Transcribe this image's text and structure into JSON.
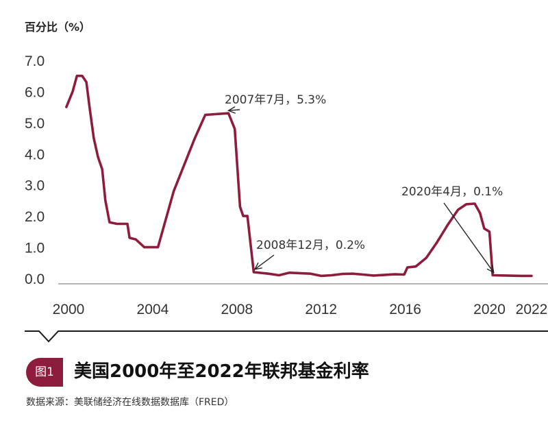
{
  "chart_data": {
    "type": "line",
    "ylabel": "百分比（%）",
    "y_ticks": [
      "7.0",
      "6.0",
      "5.0",
      "4.0",
      "3.0",
      "2.0",
      "1.0",
      "0.0"
    ],
    "x_ticks": [
      "2000",
      "2004",
      "2008",
      "2012",
      "2016",
      "2020",
      "2022"
    ],
    "ylim": [
      0,
      7
    ],
    "xlim": [
      2000,
      2022
    ],
    "series": [
      {
        "color": "#8e1c3c",
        "points": [
          [
            1999.9,
            5.5
          ],
          [
            2000.2,
            6.0
          ],
          [
            2000.4,
            6.5
          ],
          [
            2000.65,
            6.5
          ],
          [
            2000.85,
            6.3
          ],
          [
            2001.0,
            5.5
          ],
          [
            2001.2,
            4.5
          ],
          [
            2001.4,
            3.9
          ],
          [
            2001.6,
            3.5
          ],
          [
            2001.75,
            2.5
          ],
          [
            2001.95,
            1.8
          ],
          [
            2002.3,
            1.75
          ],
          [
            2002.8,
            1.75
          ],
          [
            2002.9,
            1.3
          ],
          [
            2003.2,
            1.25
          ],
          [
            2003.6,
            1.0
          ],
          [
            2004.0,
            1.0
          ],
          [
            2004.25,
            1.0
          ],
          [
            2005.0,
            2.8
          ],
          [
            2006.0,
            4.5
          ],
          [
            2006.5,
            5.25
          ],
          [
            2007.6,
            5.3
          ],
          [
            2007.9,
            4.8
          ],
          [
            2008.15,
            2.3
          ],
          [
            2008.3,
            2.0
          ],
          [
            2008.5,
            2.0
          ],
          [
            2008.8,
            0.2
          ],
          [
            2009.5,
            0.15
          ],
          [
            2010.0,
            0.1
          ],
          [
            2010.5,
            0.18
          ],
          [
            2011.5,
            0.15
          ],
          [
            2012.0,
            0.08
          ],
          [
            2012.5,
            0.1
          ],
          [
            2013.0,
            0.14
          ],
          [
            2013.5,
            0.15
          ],
          [
            2014.0,
            0.12
          ],
          [
            2014.5,
            0.09
          ],
          [
            2015.5,
            0.13
          ],
          [
            2015.95,
            0.12
          ],
          [
            2016.1,
            0.35
          ],
          [
            2016.5,
            0.38
          ],
          [
            2017.0,
            0.66
          ],
          [
            2017.5,
            1.15
          ],
          [
            2018.0,
            1.7
          ],
          [
            2018.5,
            2.2
          ],
          [
            2018.9,
            2.38
          ],
          [
            2019.3,
            2.4
          ],
          [
            2019.55,
            2.1
          ],
          [
            2019.75,
            1.6
          ],
          [
            2020.0,
            1.5
          ],
          [
            2020.15,
            0.1
          ],
          [
            2020.8,
            0.09
          ],
          [
            2021.5,
            0.08
          ],
          [
            2022.0,
            0.08
          ]
        ]
      }
    ],
    "annotations": [
      {
        "text": "2007年7月，5.3%",
        "x": 2007.6,
        "y": 5.3
      },
      {
        "text": "2008年12月，0.2%",
        "x": 2008.85,
        "y": 0.2
      },
      {
        "text": "2020年4月，0.1%",
        "x": 2020.2,
        "y": 0.1
      }
    ],
    "grid": false
  },
  "figure": {
    "badge": "图1",
    "title": "美国2000年至2022年联邦基金利率",
    "source": "数据来源：美联储经济在线数据数据库（FRED）"
  }
}
